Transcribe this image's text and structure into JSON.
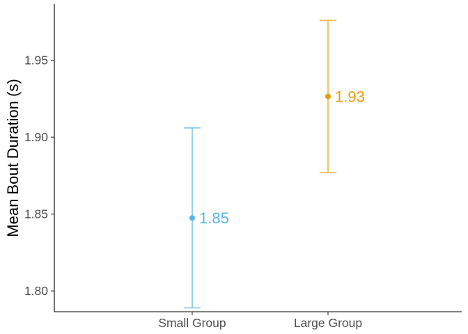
{
  "chart_data": {
    "type": "scatter",
    "categories": [
      "Small Group",
      "Large Group"
    ],
    "points": [
      {
        "category": "Small Group",
        "mean": 1.8475,
        "lower": 1.789,
        "upper": 1.906,
        "label": "1.85",
        "color": "#56B4E9"
      },
      {
        "category": "Large Group",
        "mean": 1.9265,
        "lower": 1.877,
        "upper": 1.976,
        "label": "1.93",
        "color": "#E69F00"
      }
    ],
    "title": "",
    "xlabel": "",
    "ylabel": "Mean Bout Duration (s)",
    "ylim": [
      1.7865,
      1.9865
    ],
    "yticks": [
      1.8,
      1.85,
      1.9,
      1.95
    ],
    "ytick_labels": [
      "1.80",
      "1.85",
      "1.90",
      "1.95"
    ],
    "grid": false,
    "legend": "none",
    "error_bars": true
  }
}
